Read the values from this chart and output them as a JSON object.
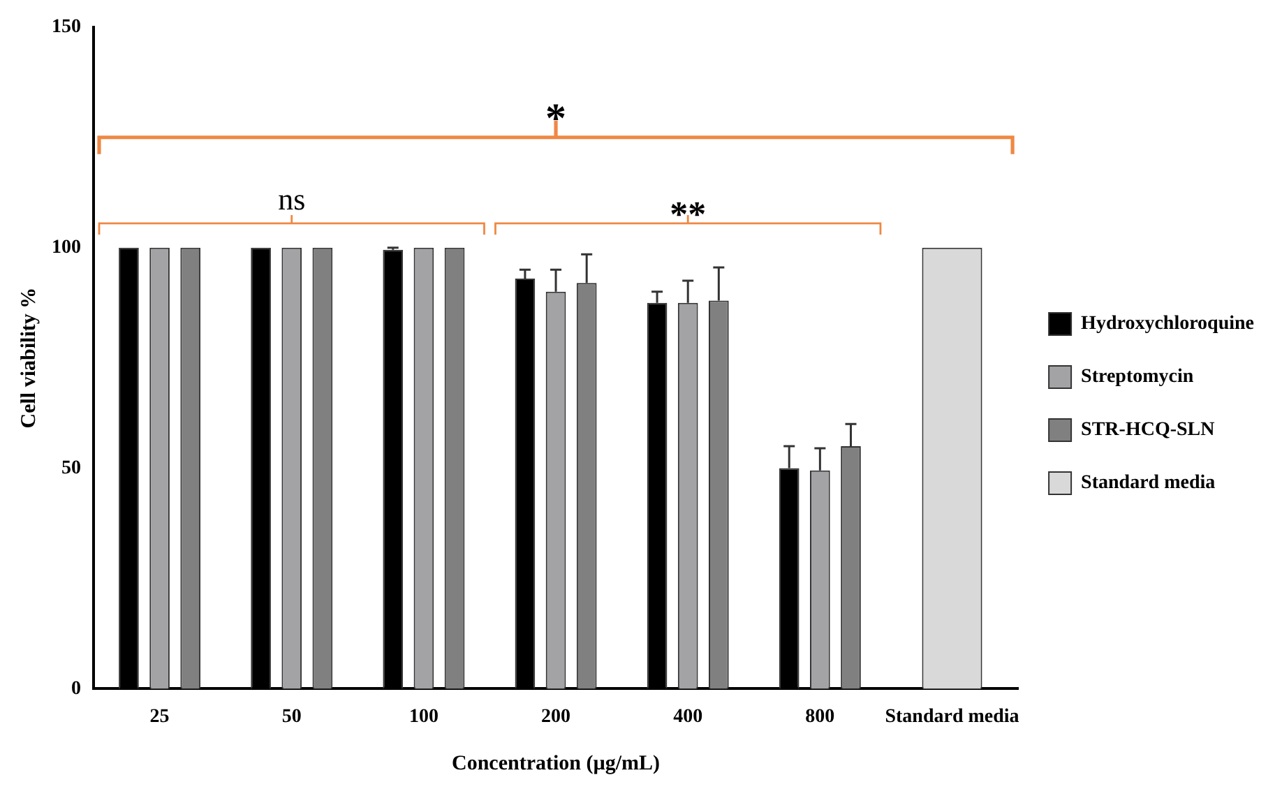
{
  "chart_data": {
    "type": "bar",
    "xlabel": "Concentration (µg/mL)",
    "ylabel": "Cell viability %",
    "categories": [
      "25",
      "50",
      "100",
      "200",
      "400",
      "800",
      "Standard media"
    ],
    "series": [
      {
        "name": "Hydroxychloroquine",
        "color": "#000000",
        "values": [
          100,
          100,
          99.5,
          93,
          87.5,
          50,
          null
        ],
        "errors": [
          null,
          null,
          0.5,
          2,
          2.5,
          5,
          null
        ]
      },
      {
        "name": "Streptomycin",
        "color": "#a3a3a6",
        "values": [
          100,
          100,
          100,
          90,
          87.5,
          49.5,
          null
        ],
        "errors": [
          null,
          null,
          null,
          5,
          5,
          5,
          null
        ]
      },
      {
        "name": "STR-HCQ-SLN",
        "color": "#808080",
        "values": [
          100,
          100,
          100,
          92,
          88,
          55,
          null
        ],
        "errors": [
          null,
          null,
          null,
          6.5,
          7.5,
          5,
          null
        ]
      },
      {
        "name": "Standard media",
        "color": "#d9d9d9",
        "values": [
          null,
          null,
          null,
          null,
          null,
          null,
          100
        ]
      }
    ],
    "ylim": [
      0,
      150
    ],
    "yticks": [
      0,
      50,
      100,
      150
    ],
    "grid": false,
    "legend": "right",
    "annotations": [
      "ns",
      "**",
      "*"
    ]
  }
}
